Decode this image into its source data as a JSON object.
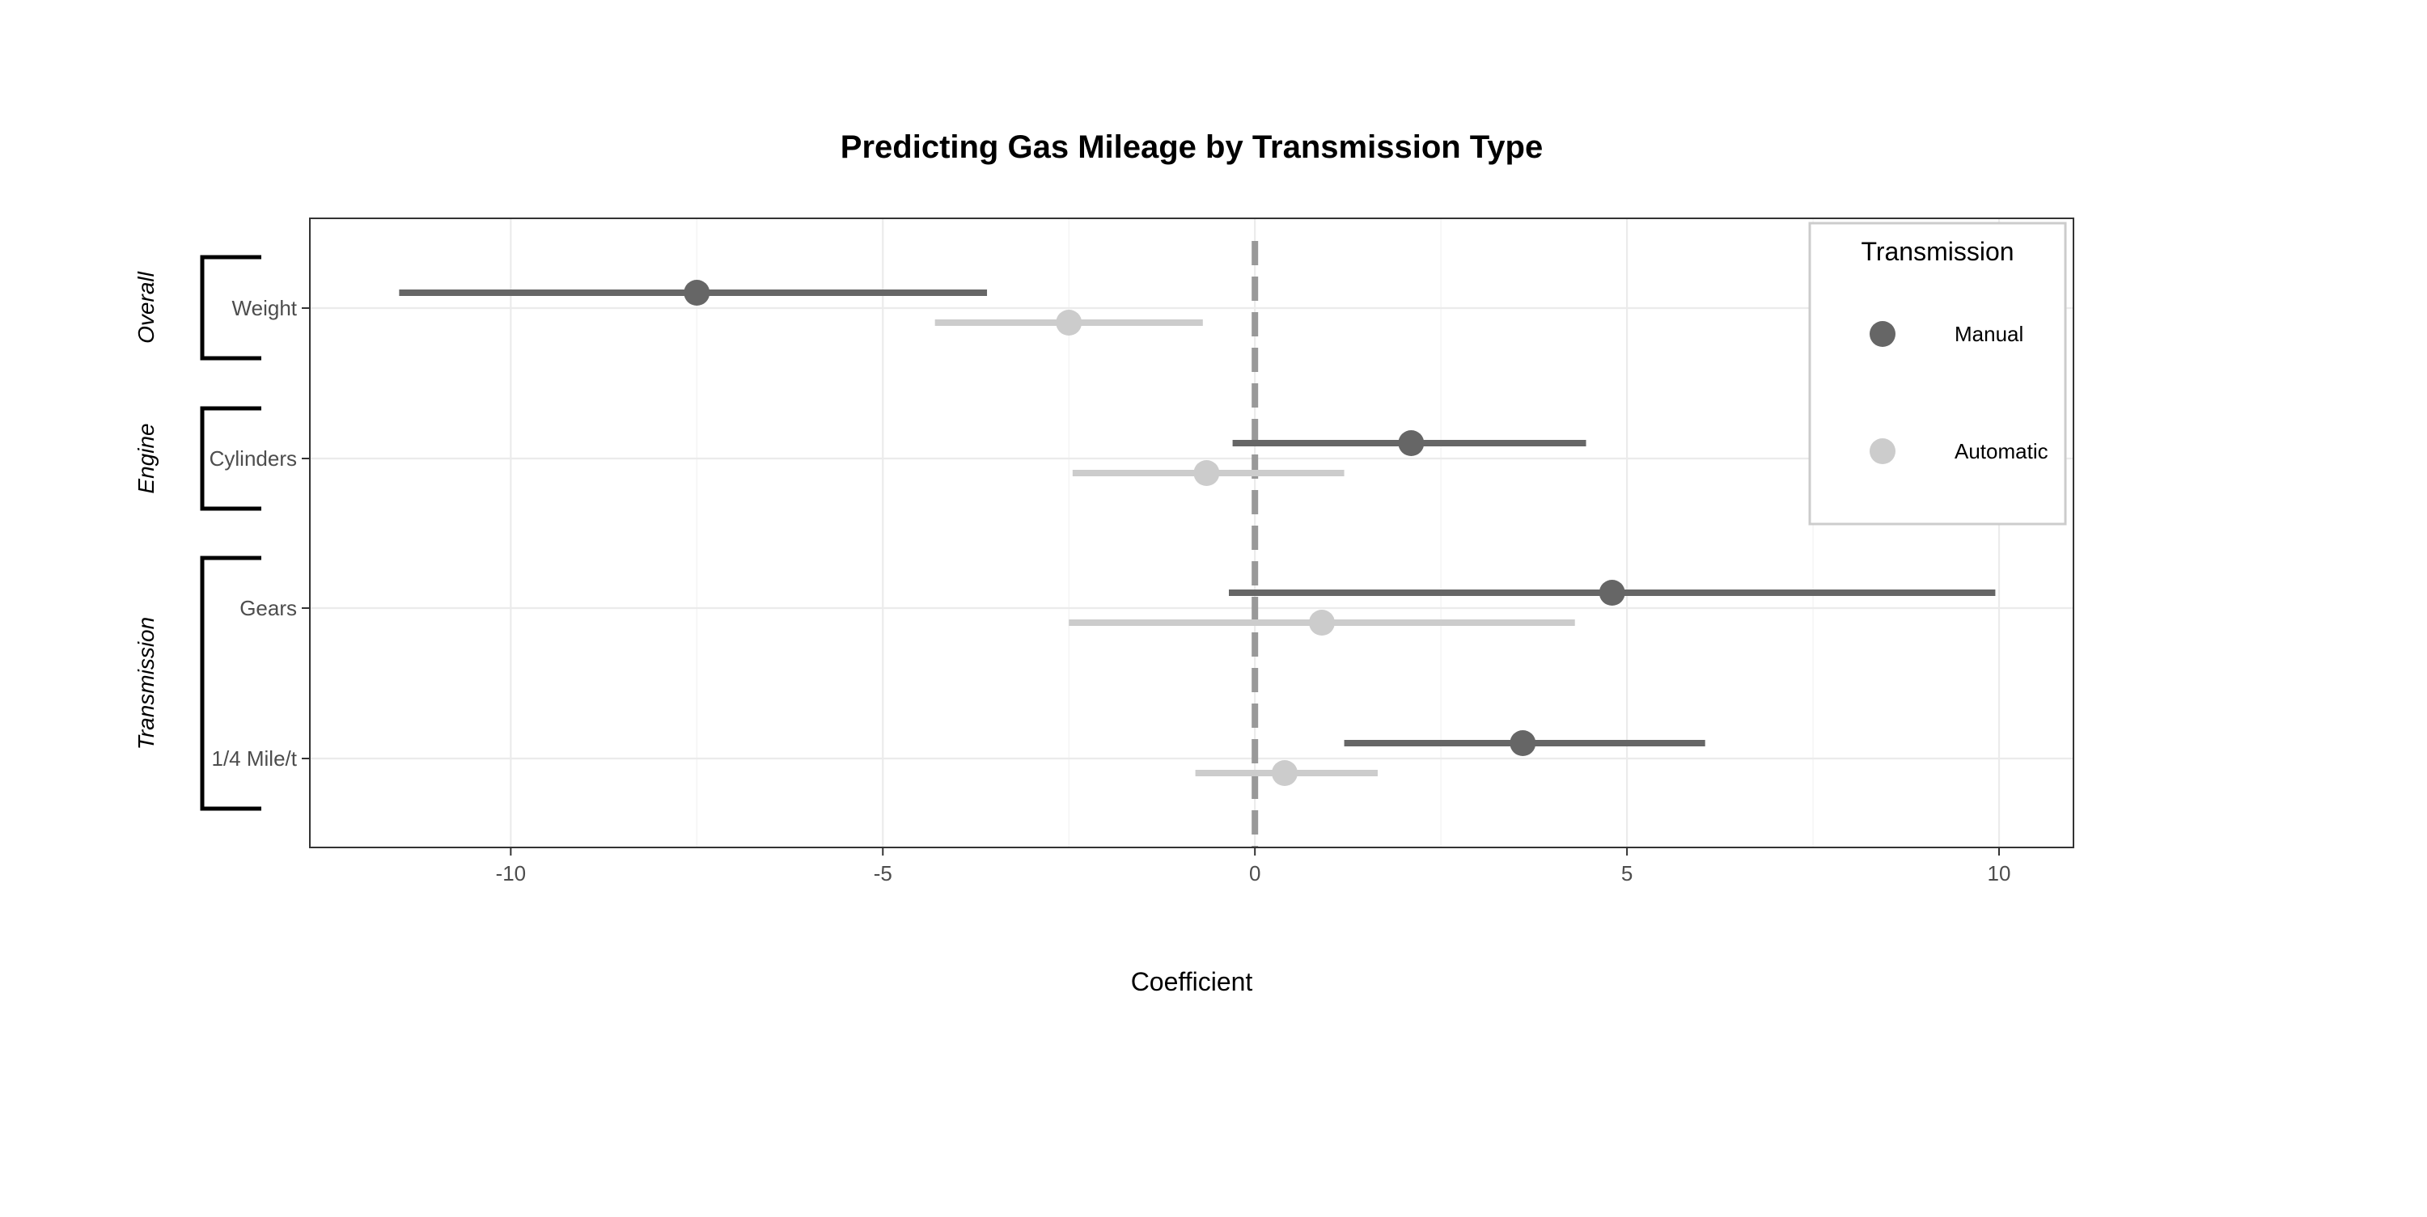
{
  "chart_data": {
    "type": "scatter",
    "subtype": "coefficient-dot-and-whisker",
    "title": "Predicting Gas Mileage by Transmission Type",
    "xlabel": "Coefficient",
    "ylabel": "",
    "xlim": [
      -12.7,
      11.0
    ],
    "xticks": [
      -10,
      -5,
      0,
      5,
      10
    ],
    "xtick_labels": [
      "-10",
      "-5",
      "0",
      "5",
      "10"
    ],
    "reference_line": {
      "x": 0,
      "style": "dashed",
      "color": "#999999"
    },
    "grid": true,
    "terms": [
      "Weight",
      "Cylinders",
      "Gears",
      "1/4 Mile/t"
    ],
    "groups": [
      {
        "label": "Overall",
        "terms": [
          "Weight"
        ]
      },
      {
        "label": "Engine",
        "terms": [
          "Cylinders"
        ]
      },
      {
        "label": "Transmission",
        "terms": [
          "Gears",
          "1/4 Mile/t"
        ]
      }
    ],
    "legend": {
      "title": "Transmission",
      "position": "top-right"
    },
    "series": [
      {
        "name": "Manual",
        "color": "#666666",
        "points": [
          {
            "term": "Weight",
            "estimate": -7.5,
            "low": -11.5,
            "high": -3.6
          },
          {
            "term": "Cylinders",
            "estimate": 2.1,
            "low": -0.3,
            "high": 4.45
          },
          {
            "term": "Gears",
            "estimate": 4.8,
            "low": -0.35,
            "high": 9.95
          },
          {
            "term": "1/4 Mile/t",
            "estimate": 3.6,
            "low": 1.2,
            "high": 6.05
          }
        ]
      },
      {
        "name": "Automatic",
        "color": "#cccccc",
        "points": [
          {
            "term": "Weight",
            "estimate": -2.5,
            "low": -4.3,
            "high": -0.7
          },
          {
            "term": "Cylinders",
            "estimate": -0.65,
            "low": -2.45,
            "high": 1.2
          },
          {
            "term": "Gears",
            "estimate": 0.9,
            "low": -2.5,
            "high": 4.3
          },
          {
            "term": "1/4 Mile/t",
            "estimate": 0.4,
            "low": -0.8,
            "high": 1.65
          }
        ]
      }
    ]
  }
}
